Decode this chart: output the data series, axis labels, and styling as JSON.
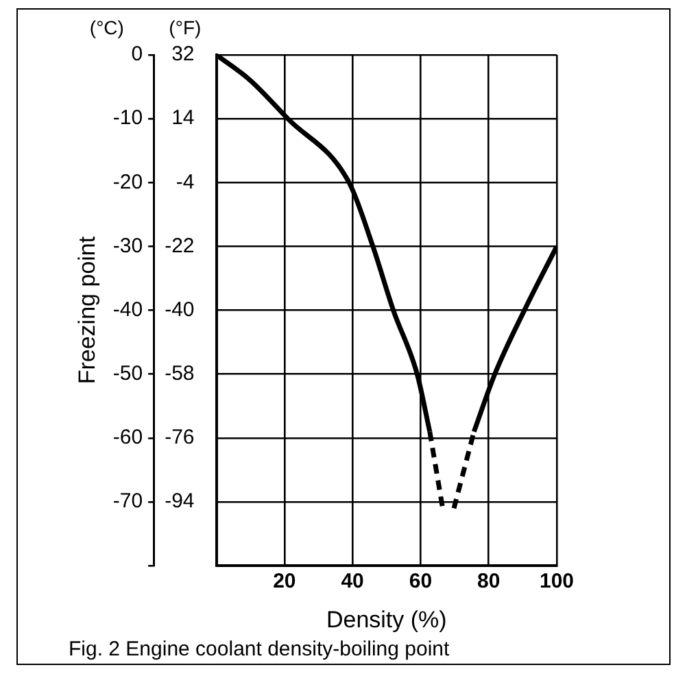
{
  "chart_data": {
    "type": "line",
    "title": "Fig. 2 Engine coolant density-boiling point",
    "xlabel": "Density (%)",
    "ylabel": "Freezing point",
    "annotations": [
      "(°C)",
      "(°F)"
    ],
    "xlim": [
      0,
      100
    ],
    "xticks": [
      {
        "value": 0,
        "label": null
      },
      20,
      40,
      60,
      80,
      100
    ],
    "ylim": [
      -80,
      0
    ],
    "yticks": [
      {
        "value": -80,
        "label": null
      },
      -70,
      -60,
      -50,
      -40,
      -30,
      -20,
      -10,
      0
    ],
    "y2lim": [
      -112,
      32
    ],
    "y2ticks": [
      -94,
      -76,
      -58,
      -40,
      -22,
      -4,
      14,
      32
    ],
    "grid": true,
    "legend": false,
    "marker": "none",
    "series": [
      {
        "color": "#000000",
        "line_style": "solid",
        "x": [
          0,
          10,
          21,
          39,
          46,
          52,
          59,
          62.7
        ],
        "values": [
          0,
          -4,
          -10,
          -20,
          -30,
          -40,
          -50,
          -59
        ]
      },
      {
        "color": "#000000",
        "line_style": "dashed",
        "x": [
          62.7,
          66.5
        ],
        "values": [
          -59,
          -71
        ]
      },
      {
        "color": "#000000",
        "line_style": "dashed",
        "x": [
          69.8,
          75.7
        ],
        "values": [
          -71,
          -59
        ]
      },
      {
        "color": "#000000",
        "line_style": "solid",
        "x": [
          75.7,
          81.8,
          90.5,
          100
        ],
        "values": [
          -59,
          -50,
          -40,
          -30
        ]
      }
    ]
  }
}
